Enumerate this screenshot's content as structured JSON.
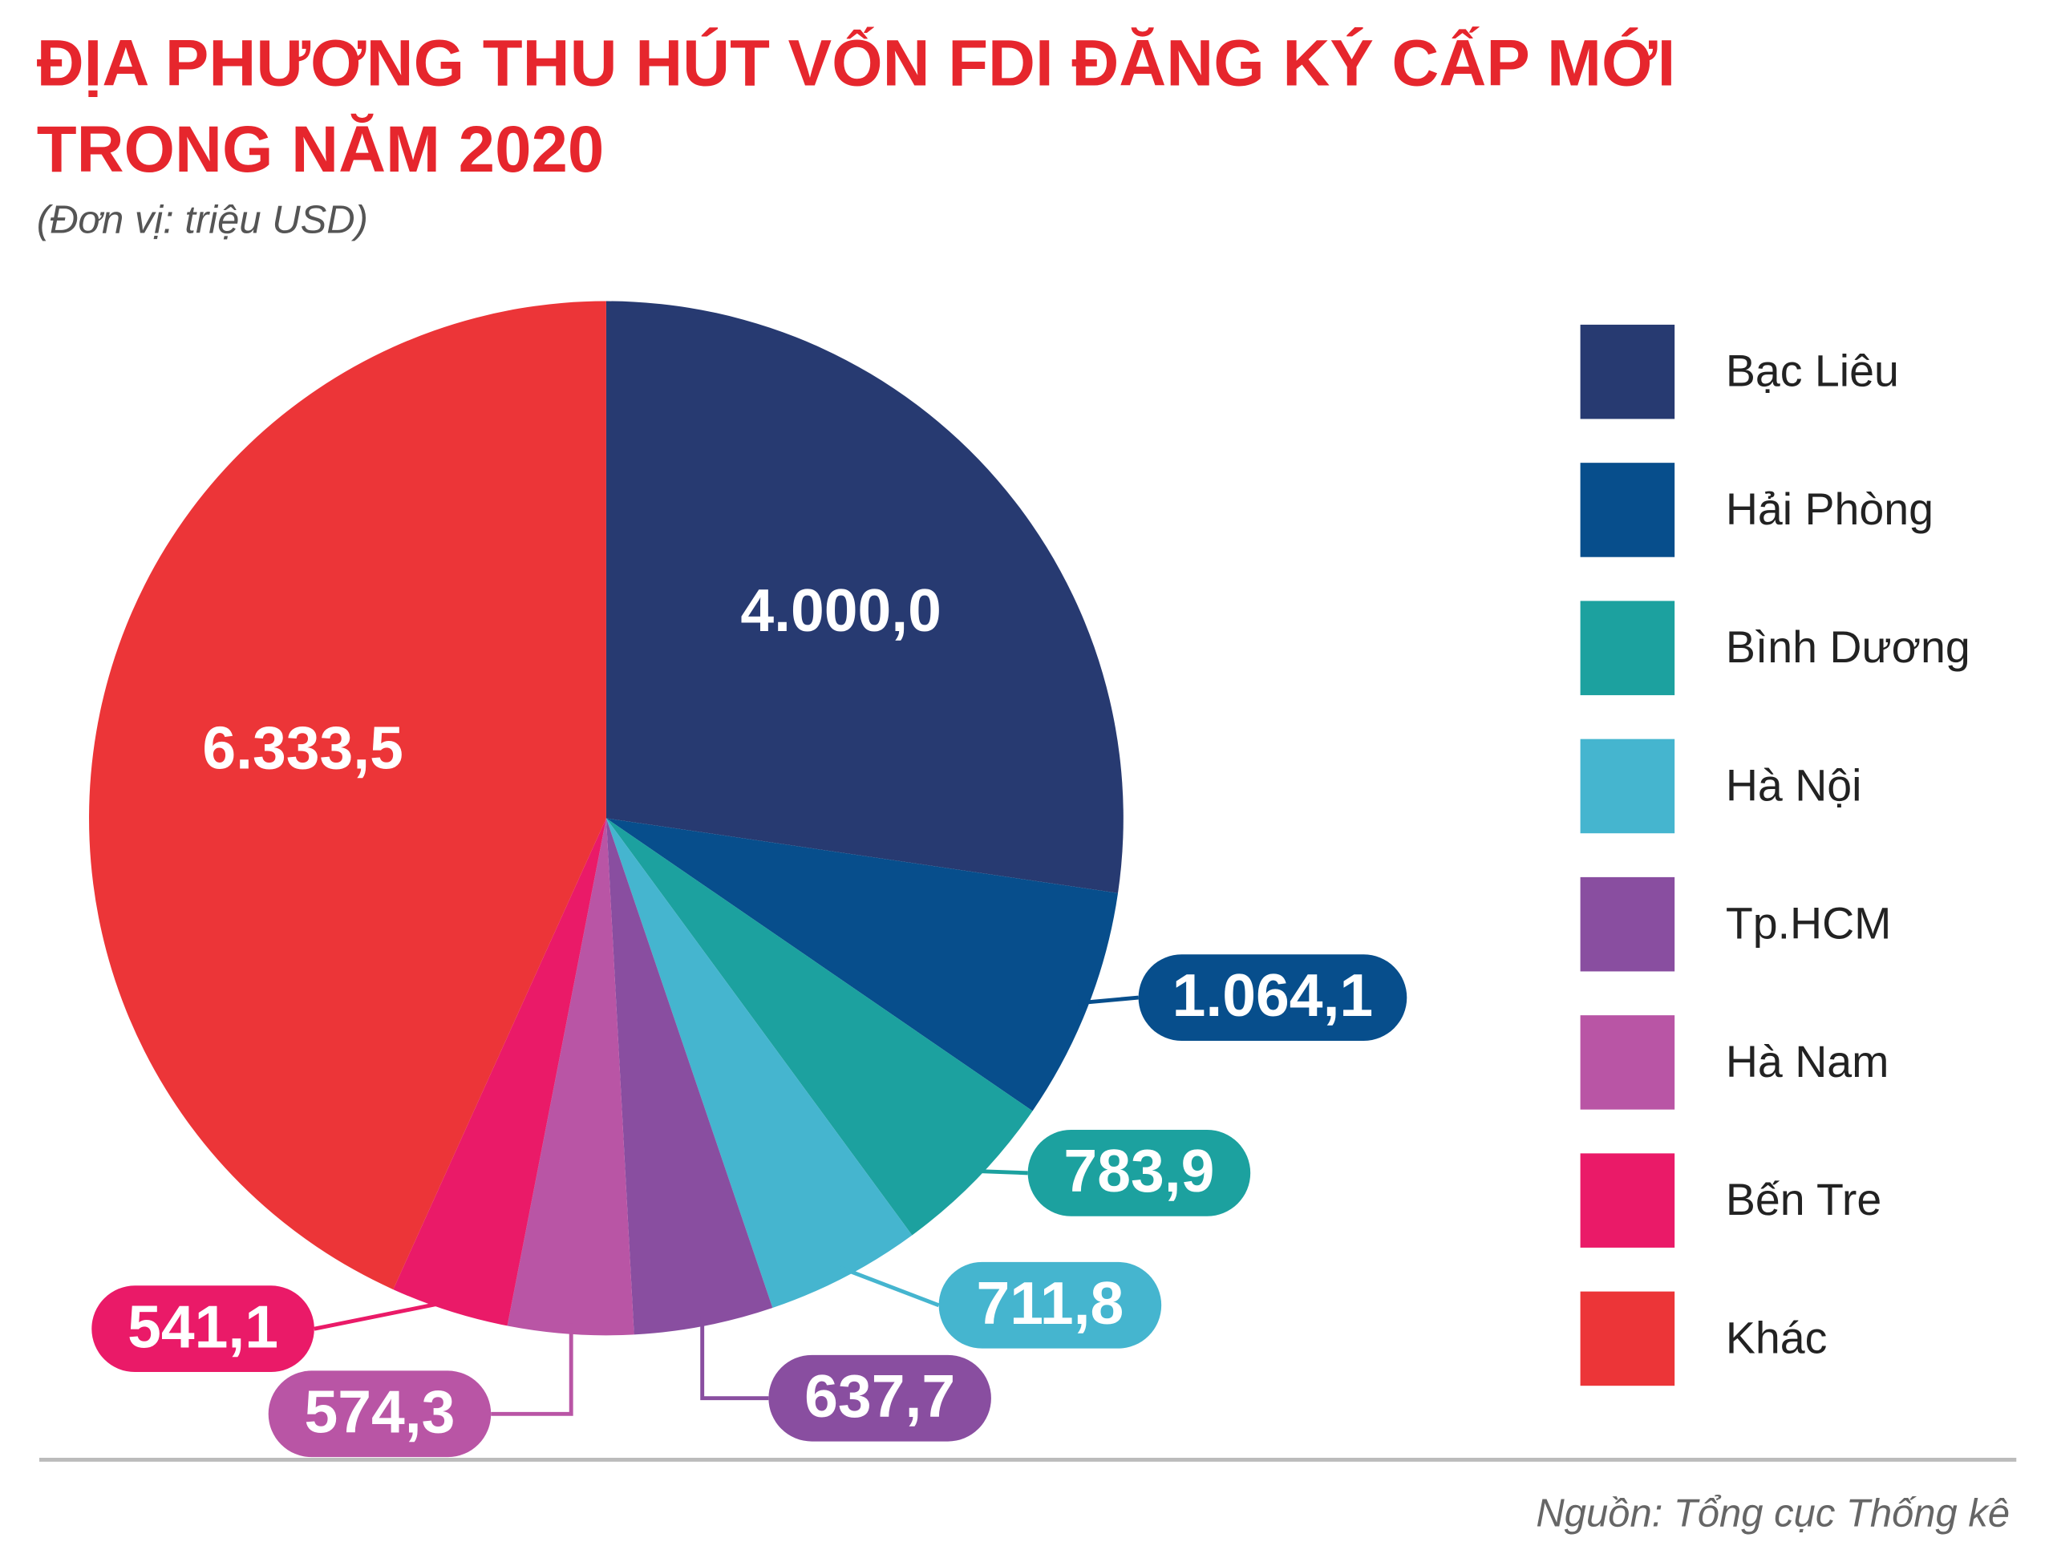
{
  "chart_data": {
    "type": "pie",
    "title": [
      "ĐỊA PHƯƠNG THU HÚT VỐN FDI ĐĂNG KÝ CẤP MỚI",
      "TRONG NĂM 2020"
    ],
    "subtitle": "(Đơn vị: triệu USD)",
    "source": "Nguồn: Tổng cục Thống kê",
    "categories": [
      "Bạc Liêu",
      "Hải Phòng",
      "Bình Dương",
      "Hà Nội",
      "Tp.HCM",
      "Hà Nam",
      "Bến Tre",
      "Khác"
    ],
    "values": [
      4000.0,
      1064.1,
      783.9,
      711.8,
      637.7,
      574.3,
      541.1,
      6333.5
    ],
    "value_labels": [
      "4.000,0",
      "1.064,1",
      "783,9",
      "711,8",
      "637,7",
      "574,3",
      "541,1",
      "6.333,5"
    ],
    "colors": [
      "#273a71",
      "#074e8c",
      "#1ca19f",
      "#45b5cf",
      "#894ea0",
      "#b955a5",
      "#ea1a68",
      "#ec3538"
    ],
    "legend": "right"
  }
}
